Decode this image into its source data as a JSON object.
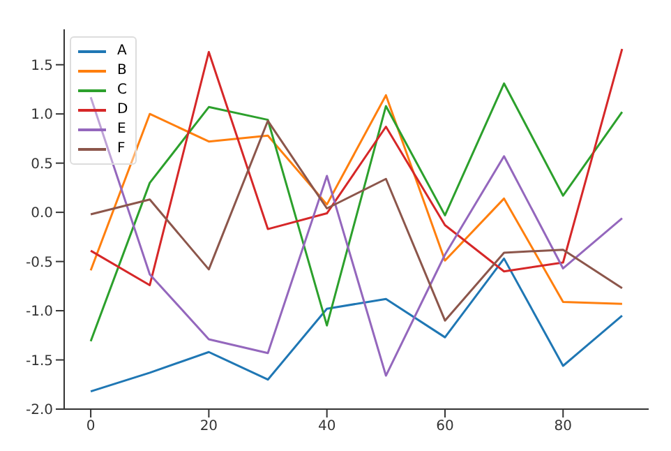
{
  "chart_data": {
    "type": "line",
    "x": [
      0,
      10,
      20,
      30,
      40,
      50,
      60,
      70,
      80,
      90
    ],
    "series": [
      {
        "name": "A",
        "color": "#1f77b4",
        "values": [
          -1.82,
          -1.63,
          -1.42,
          -1.7,
          -0.98,
          -0.88,
          -1.27,
          -0.47,
          -1.56,
          -1.05
        ]
      },
      {
        "name": "B",
        "color": "#ff7f0e",
        "values": [
          -0.59,
          1.0,
          0.72,
          0.78,
          0.08,
          1.19,
          -0.49,
          0.14,
          -0.91,
          -0.93
        ]
      },
      {
        "name": "C",
        "color": "#2ca02c",
        "values": [
          -1.31,
          0.3,
          1.07,
          0.94,
          -1.15,
          1.08,
          -0.03,
          1.31,
          0.17,
          1.02
        ]
      },
      {
        "name": "D",
        "color": "#d62728",
        "values": [
          -0.39,
          -0.74,
          1.63,
          -0.17,
          -0.01,
          0.87,
          -0.13,
          -0.6,
          -0.51,
          1.66
        ]
      },
      {
        "name": "E",
        "color": "#9467bd",
        "values": [
          1.17,
          -0.63,
          -1.29,
          -1.43,
          0.37,
          -1.66,
          -0.43,
          0.57,
          -0.57,
          -0.06
        ]
      },
      {
        "name": "F",
        "color": "#8c564b",
        "values": [
          -0.02,
          0.13,
          -0.58,
          0.93,
          0.04,
          0.34,
          -1.1,
          -0.41,
          -0.38,
          -0.77
        ]
      }
    ],
    "xlim": [
      -4.5,
      94.5
    ],
    "xticks": [
      0,
      20,
      40,
      60,
      80
    ],
    "ylim": [
      -2.0,
      1.86
    ],
    "yticks": [
      {
        "value": -2.0,
        "label": "-2.0"
      },
      {
        "value": -1.5,
        "label": "-1.5"
      },
      {
        "value": -1.0,
        "label": "-1.0"
      },
      {
        "value": -0.5,
        "label": "-0.5"
      },
      {
        "value": 0.0,
        "label": "0.0"
      },
      {
        "value": 0.5,
        "label": "0.5"
      },
      {
        "value": 1.0,
        "label": "1.0"
      },
      {
        "value": 1.5,
        "label": "1.5"
      }
    ],
    "legend": "top left",
    "grid": false,
    "marker": "none",
    "line_style": "solid"
  }
}
